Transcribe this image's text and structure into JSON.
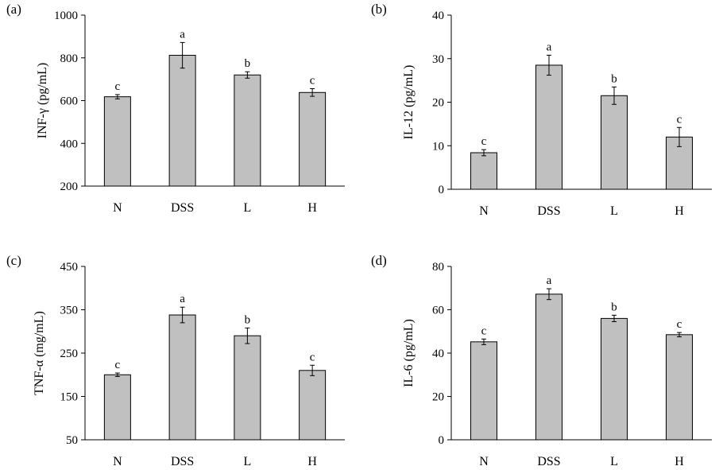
{
  "chart_data": [
    {
      "panel": "(a)",
      "type": "bar",
      "title": "",
      "xlabel": "",
      "ylabel": "INF-γ (pg/mL)",
      "categories": [
        "N",
        "DSS",
        "L",
        "H"
      ],
      "values": [
        618,
        812,
        720,
        638
      ],
      "errors": [
        10,
        60,
        15,
        18
      ],
      "letters": [
        "c",
        "a",
        "b",
        "c"
      ],
      "ylim": [
        200,
        1000
      ],
      "yticks": [
        200,
        400,
        600,
        800,
        1000
      ],
      "grid": false,
      "bar_color": "#c0c0c0"
    },
    {
      "panel": "(b)",
      "type": "bar",
      "title": "",
      "xlabel": "",
      "ylabel": "IL-12 (pg/mL)",
      "categories": [
        "N",
        "DSS",
        "L",
        "H"
      ],
      "values": [
        8.4,
        28.5,
        21.5,
        12.0
      ],
      "errors": [
        0.7,
        2.3,
        2.0,
        2.2
      ],
      "letters": [
        "c",
        "a",
        "b",
        "c"
      ],
      "ylim": [
        0,
        40
      ],
      "yticks": [
        0,
        10,
        20,
        30,
        40
      ],
      "grid": false,
      "bar_color": "#c0c0c0"
    },
    {
      "panel": "(c)",
      "type": "bar",
      "title": "",
      "xlabel": "",
      "ylabel": "TNF-α (mg/mL)",
      "categories": [
        "N",
        "DSS",
        "L",
        "H"
      ],
      "values": [
        200,
        338,
        290,
        210
      ],
      "errors": [
        4,
        18,
        18,
        12
      ],
      "letters": [
        "c",
        "a",
        "b",
        "c"
      ],
      "ylim": [
        50,
        450
      ],
      "yticks": [
        50,
        150,
        250,
        350,
        450
      ],
      "grid": false,
      "bar_color": "#c0c0c0"
    },
    {
      "panel": "(d)",
      "type": "bar",
      "title": "",
      "xlabel": "",
      "ylabel": "IL-6 (pg/mL)",
      "categories": [
        "N",
        "DSS",
        "L",
        "H"
      ],
      "values": [
        45.2,
        67.2,
        56.0,
        48.5
      ],
      "errors": [
        1.3,
        2.5,
        1.5,
        1.0
      ],
      "letters": [
        "c",
        "a",
        "b",
        "c"
      ],
      "ylim": [
        0,
        80
      ],
      "yticks": [
        0,
        20,
        40,
        60,
        80
      ],
      "grid": false,
      "bar_color": "#c0c0c0"
    }
  ]
}
